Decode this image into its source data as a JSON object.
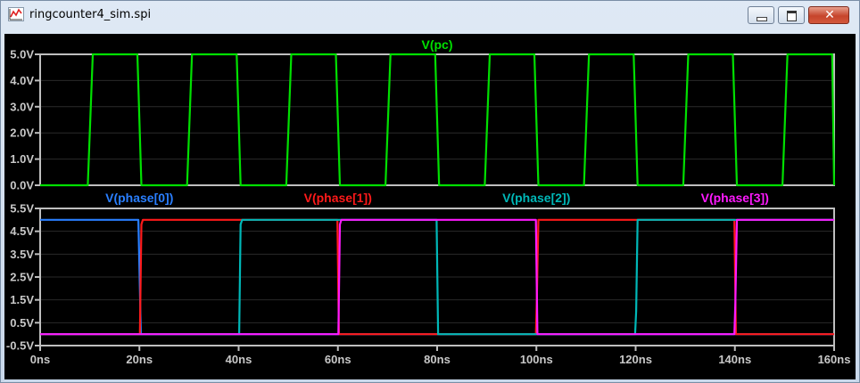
{
  "window": {
    "title": "ringcounter4_sim.spi",
    "icons": {
      "app": "waveform-icon",
      "minimize": "minimize-icon",
      "maximize": "maximize-icon",
      "close": "close-icon"
    },
    "close_glyph": "✕"
  },
  "chart_data": [
    {
      "type": "line",
      "title": "V(pc)",
      "ylabel": "",
      "xlabel": "",
      "ylim": [
        0,
        5
      ],
      "xlim": [
        0,
        160
      ],
      "yticks": [
        "0.0V",
        "1.0V",
        "2.0V",
        "3.0V",
        "4.0V",
        "5.0V"
      ],
      "ytick_values": [
        0,
        1,
        2,
        3,
        4,
        5
      ],
      "grid": true,
      "series": [
        {
          "name": "V(pc)",
          "color": "#00e000",
          "x": [
            0,
            9.6,
            10.6,
            19.6,
            20.4,
            29.6,
            30.6,
            39.6,
            40.4,
            49.6,
            50.6,
            59.6,
            60.4,
            69.6,
            70.6,
            79.6,
            80.4,
            89.6,
            90.6,
            99.6,
            100.4,
            109.6,
            110.6,
            119.6,
            120.4,
            129.6,
            130.6,
            139.6,
            140.4,
            149.6,
            150.6,
            159.6,
            160
          ],
          "y": [
            0,
            0,
            5,
            5,
            0,
            0,
            5,
            5,
            0,
            0,
            5,
            5,
            0,
            0,
            5,
            5,
            0,
            0,
            5,
            5,
            0,
            0,
            5,
            5,
            0,
            0,
            5,
            5,
            0,
            0,
            5,
            5,
            0
          ]
        }
      ]
    },
    {
      "type": "line",
      "title": "",
      "ylabel": "",
      "xlabel": "",
      "ylim": [
        -0.5,
        5.5
      ],
      "xlim": [
        0,
        160
      ],
      "yticks": [
        "-0.5V",
        "0.5V",
        "1.5V",
        "2.5V",
        "3.5V",
        "4.5V",
        "5.5V"
      ],
      "ytick_values": [
        -0.5,
        0.5,
        1.5,
        2.5,
        3.5,
        4.5,
        5.5
      ],
      "xticks": [
        "0ns",
        "20ns",
        "40ns",
        "60ns",
        "80ns",
        "100ns",
        "120ns",
        "140ns",
        "160ns"
      ],
      "xtick_values": [
        0,
        20,
        40,
        60,
        80,
        100,
        120,
        140,
        160
      ],
      "grid": true,
      "series": [
        {
          "name": "V(phase[0])",
          "color": "#2a7fff",
          "x": [
            0,
            19.8,
            20.05,
            20.3,
            160
          ],
          "y": [
            5,
            5,
            2.5,
            0,
            0
          ]
        },
        {
          "name": "V(phase[1])",
          "color": "#ff1a1a",
          "x": [
            0,
            20.1,
            20.4,
            20.7,
            59.9,
            60.2,
            99.9,
            100.1,
            100.4,
            139.9,
            140.2,
            160
          ],
          "y": [
            0,
            0,
            4.8,
            5,
            5,
            0,
            0,
            1.6,
            5,
            5,
            0,
            0
          ]
        },
        {
          "name": "V(phase[2])",
          "color": "#00b8b8",
          "x": [
            0,
            40.1,
            40.4,
            40.7,
            79.9,
            80.2,
            119.9,
            120.1,
            120.4,
            160
          ],
          "y": [
            0,
            0,
            4.8,
            5,
            5,
            0,
            0,
            1.0,
            5,
            5
          ]
        },
        {
          "name": "V(phase[3])",
          "color": "#ff1aff",
          "x": [
            0,
            60.1,
            60.4,
            60.7,
            99.9,
            100.2,
            139.9,
            140.1,
            140.4,
            160
          ],
          "y": [
            0,
            0,
            4.8,
            5,
            5,
            0,
            0,
            1.4,
            5,
            5
          ]
        }
      ]
    }
  ]
}
